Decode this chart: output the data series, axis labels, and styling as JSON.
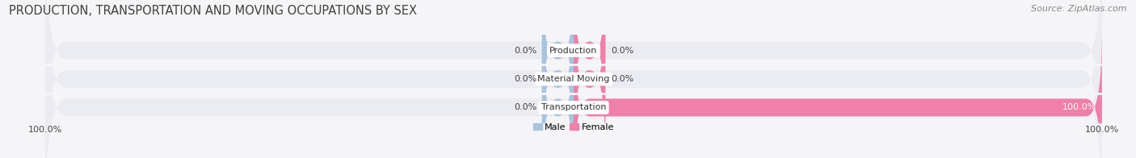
{
  "title": "PRODUCTION, TRANSPORTATION AND MOVING OCCUPATIONS BY SEX",
  "source": "Source: ZipAtlas.com",
  "categories": [
    "Production",
    "Material Moving",
    "Transportation"
  ],
  "male_values": [
    0.0,
    0.0,
    0.0
  ],
  "female_values": [
    0.0,
    0.0,
    100.0
  ],
  "male_color": "#a8c4e0",
  "female_color": "#f080a8",
  "bar_bg_color": "#e0e0e8",
  "male_label": "Male",
  "female_label": "Female",
  "xlim": 100,
  "min_bar_width": 6,
  "title_fontsize": 10.5,
  "source_fontsize": 8,
  "label_fontsize": 8,
  "category_fontsize": 8,
  "axis_label_fontsize": 8,
  "bar_height": 0.62,
  "fig_width": 14.06,
  "fig_height": 1.96,
  "background_color": "#f5f5f8",
  "bar_bg_alpha": 1.0,
  "row_bg_color": "#ebebf2"
}
